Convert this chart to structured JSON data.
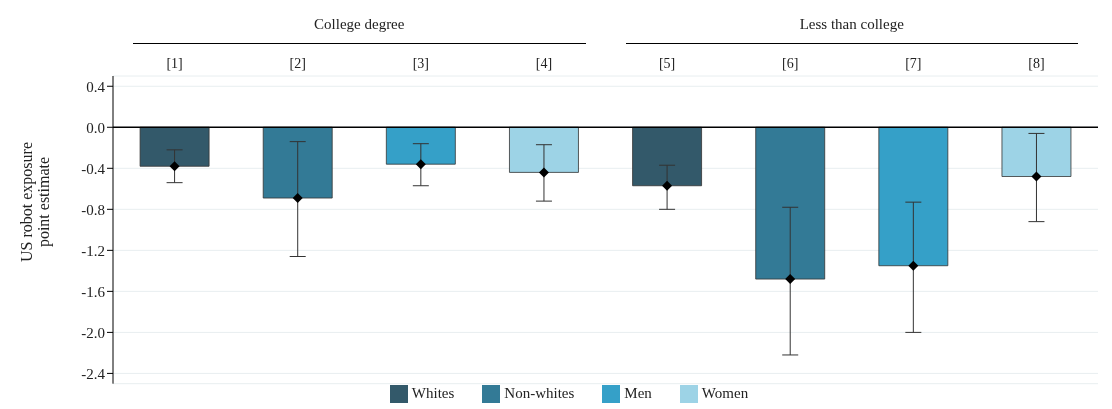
{
  "chart_data": {
    "type": "bar",
    "stacked": true,
    "categories": [
      "[1]",
      "[2]",
      "[3]",
      "[4]",
      "[5]",
      "[6]",
      "[7]",
      "[8]"
    ],
    "series": [
      {
        "name": "Whites",
        "color": "#33596a",
        "values": [
          -0.38,
          null,
          null,
          null,
          -0.57,
          null,
          null,
          null
        ],
        "errors": [
          [
            -0.54,
            -0.22
          ],
          null,
          null,
          null,
          [
            -0.8,
            -0.37
          ],
          null,
          null,
          null
        ]
      },
      {
        "name": "Non-whites",
        "color": "#337a96",
        "values": [
          null,
          -0.69,
          null,
          null,
          null,
          -1.48,
          null,
          null
        ],
        "errors": [
          null,
          [
            -1.26,
            -0.14
          ],
          null,
          null,
          null,
          [
            -2.22,
            -0.78
          ],
          null,
          null
        ]
      },
      {
        "name": "Men",
        "color": "#35a0c8",
        "values": [
          null,
          null,
          -0.36,
          null,
          null,
          null,
          -1.35,
          null
        ],
        "errors": [
          null,
          null,
          [
            -0.57,
            -0.16
          ],
          null,
          null,
          null,
          [
            -2.0,
            -0.73
          ],
          null
        ]
      },
      {
        "name": "Women",
        "color": "#9dd3e6",
        "values": [
          null,
          null,
          null,
          -0.44,
          null,
          null,
          null,
          -0.48
        ],
        "errors": [
          null,
          null,
          null,
          [
            -0.72,
            -0.17
          ],
          null,
          null,
          null,
          [
            -0.92,
            -0.06
          ]
        ]
      },
      {
        "type": "scatter",
        "color": "#000000",
        "x": [
          "[1]",
          "[2]",
          "[3]",
          "[4]",
          "[5]",
          "[6]",
          "[7]",
          "[8]"
        ],
        "values": [
          -0.38,
          -0.69,
          -0.36,
          -0.44,
          -0.57,
          -1.48,
          -1.35,
          -0.48
        ]
      }
    ],
    "ylabel": "US robot exposure point estimate",
    "annotations": [
      "College degree",
      "Less than college"
    ],
    "ylim": [
      -2.5,
      0.5
    ],
    "yticks": [
      {
        "value": 0.4,
        "label": "0.4"
      },
      {
        "value": 0,
        "label": "0.0"
      },
      {
        "value": -0.4,
        "label": "-0.4"
      },
      {
        "value": -0.8,
        "label": "-0.8"
      },
      {
        "value": -1.2,
        "label": "-1.2"
      },
      {
        "value": -1.6,
        "label": "-1.6"
      },
      {
        "value": -2.0,
        "label": "-2.0"
      },
      {
        "value": -2.4,
        "label": "-2.4"
      }
    ],
    "ref_lines": [
      {
        "axis": "y",
        "value": 0,
        "color": "#000000"
      }
    ],
    "grid": "y",
    "legend": "bottom",
    "marker": "diamond"
  }
}
